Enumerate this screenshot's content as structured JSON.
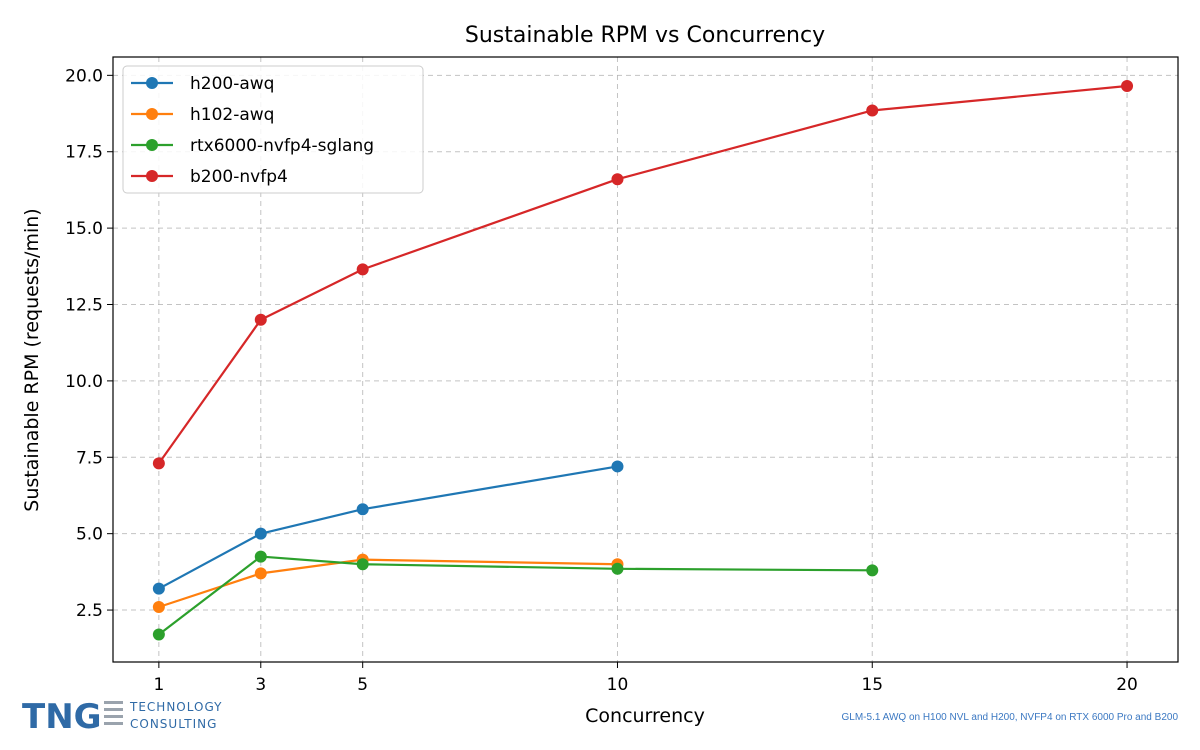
{
  "chart_data": {
    "type": "line",
    "title": "Sustainable RPM vs Concurrency",
    "xlabel": "Concurrency",
    "ylabel": "Sustainable RPM (requests/min)",
    "xlim": [
      0.1,
      21
    ],
    "ylim": [
      0.8,
      20.6
    ],
    "xticks": [
      1,
      3,
      5,
      10,
      15,
      20
    ],
    "yticks": [
      2.5,
      5.0,
      7.5,
      10.0,
      12.5,
      15.0,
      17.5,
      20.0
    ],
    "grid": true,
    "legend_position": "upper-left",
    "series": [
      {
        "name": "h200-awq",
        "color": "#1f77b4",
        "x": [
          1,
          3,
          5,
          10
        ],
        "y": [
          3.2,
          5.0,
          5.8,
          7.2
        ]
      },
      {
        "name": "h102-awq",
        "color": "#ff7f0e",
        "x": [
          1,
          3,
          5,
          10
        ],
        "y": [
          2.6,
          3.7,
          4.15,
          4.0
        ]
      },
      {
        "name": "rtx6000-nvfp4-sglang",
        "color": "#2ca02c",
        "x": [
          1,
          3,
          5,
          10,
          15
        ],
        "y": [
          1.7,
          4.25,
          4.0,
          3.85,
          3.8
        ]
      },
      {
        "name": "b200-nvfp4",
        "color": "#d62728",
        "x": [
          1,
          3,
          5,
          10,
          15,
          20
        ],
        "y": [
          7.3,
          12.0,
          13.65,
          16.6,
          18.85,
          19.65
        ]
      }
    ]
  },
  "logo": {
    "main": "TNG",
    "line1": "TECHNOLOGY",
    "line2": "CONSULTING"
  },
  "footnote": "GLM-5.1 AWQ on H100 NVL and H200, NVFP4 on RTX 6000 Pro and B200"
}
